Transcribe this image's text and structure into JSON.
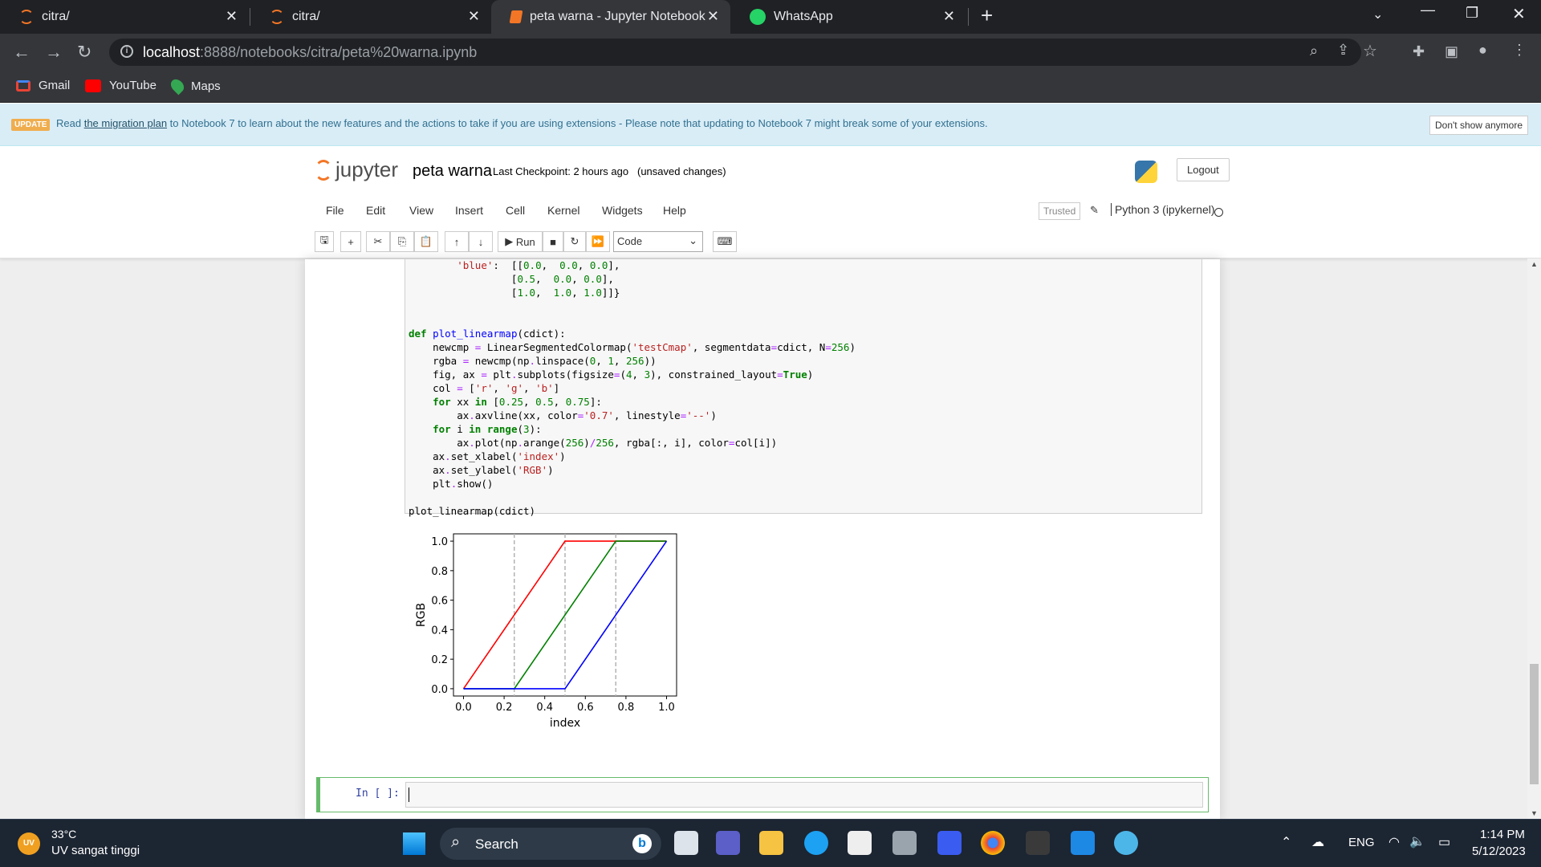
{
  "browser": {
    "tabs": [
      {
        "title": "citra/",
        "active": false
      },
      {
        "title": "citra/",
        "active": false
      },
      {
        "title": "peta warna - Jupyter Notebook",
        "active": true
      },
      {
        "title": "WhatsApp",
        "active": false
      }
    ],
    "url_host": "localhost",
    "url_path": ":8888/notebooks/citra/peta%20warna.ipynb",
    "bookmarks": [
      "Gmail",
      "YouTube",
      "Maps"
    ]
  },
  "banner": {
    "badge": "UPDATE",
    "text_before": "Read ",
    "link": "the migration plan",
    "text_after": " to Notebook 7 to learn about the new features and the actions to take if you are using extensions - Please note that updating to Notebook 7 might break some of your extensions.",
    "dismiss": "Don't show anymore"
  },
  "header": {
    "logo_text": "jupyter",
    "notebook_name": "peta warna",
    "checkpoint": "Last Checkpoint: 2 hours ago",
    "unsaved": "(unsaved changes)",
    "logout": "Logout"
  },
  "menu": {
    "items": [
      "File",
      "Edit",
      "View",
      "Insert",
      "Cell",
      "Kernel",
      "Widgets",
      "Help"
    ],
    "trusted": "Trusted",
    "kernel": "Python 3 (ipykernel)"
  },
  "toolbar": {
    "run": "Run",
    "cell_type": "Code"
  },
  "input_prompt": "In [ ]:",
  "chart_data": {
    "type": "line",
    "xlabel": "index",
    "ylabel": "RGB",
    "xlim": [
      0.0,
      1.0
    ],
    "ylim": [
      0.0,
      1.0
    ],
    "xticks": [
      "0.0",
      "0.2",
      "0.4",
      "0.6",
      "0.8",
      "1.0"
    ],
    "yticks": [
      "0.0",
      "0.2",
      "0.4",
      "0.6",
      "0.8",
      "1.0"
    ],
    "vlines": [
      0.25,
      0.5,
      0.75
    ],
    "series": [
      {
        "color": "#ff0000",
        "x": [
          0.0,
          0.5,
          1.0
        ],
        "y": [
          0.0,
          1.0,
          1.0
        ]
      },
      {
        "color": "#008000",
        "x": [
          0.0,
          0.25,
          0.75,
          1.0
        ],
        "y": [
          0.0,
          0.0,
          1.0,
          1.0
        ]
      },
      {
        "color": "#0000ff",
        "x": [
          0.0,
          0.5,
          1.0
        ],
        "y": [
          0.0,
          0.0,
          1.0
        ]
      }
    ]
  },
  "taskbar": {
    "weather_temp": "33°C",
    "weather_desc": "UV sangat tinggi",
    "search": "Search",
    "lang": "ENG",
    "time": "1:14 PM",
    "date": "5/12/2023"
  }
}
